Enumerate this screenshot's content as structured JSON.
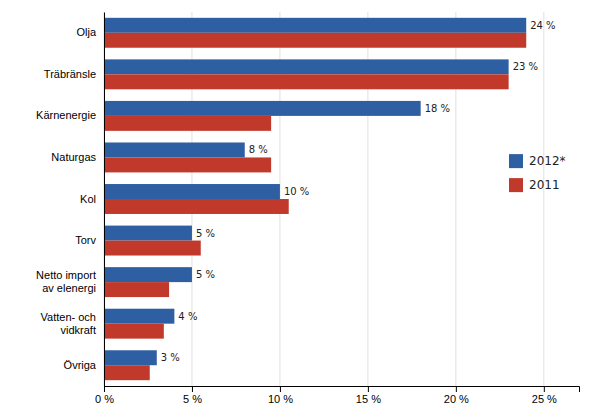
{
  "chart_data": {
    "type": "bar",
    "orientation": "horizontal",
    "categories": [
      "Olja",
      "Träbränsle",
      "Kärnenergie",
      "Naturgas",
      "Kol",
      "Torv",
      "Netto import\nav elenergi",
      "Vatten- och\nvidkraft",
      "Övriga"
    ],
    "series": [
      {
        "name": "2012*",
        "color": "#2E5FA3",
        "values": [
          24,
          23,
          18,
          8,
          10,
          5,
          5,
          4,
          3
        ],
        "value_labels": [
          "24 %",
          "23 %",
          "18 %",
          "8 %",
          "10 %",
          "5 %",
          "5 %",
          "4 %",
          "3 %"
        ]
      },
      {
        "name": "2011",
        "color": "#C0392B",
        "values": [
          24,
          23,
          9.5,
          9.5,
          10.5,
          5.5,
          3.7,
          3.4,
          2.6
        ]
      }
    ],
    "xlim": [
      0,
      27
    ],
    "xticks": [
      {
        "value": 0,
        "label": "0 %"
      },
      {
        "value": 5,
        "label": "5 %"
      },
      {
        "value": 10,
        "label": "10 %"
      },
      {
        "value": 15,
        "label": "15 %"
      },
      {
        "value": 20,
        "label": "20 %"
      },
      {
        "value": 25,
        "label": "25 %"
      }
    ],
    "grid": true,
    "legend": "right"
  }
}
